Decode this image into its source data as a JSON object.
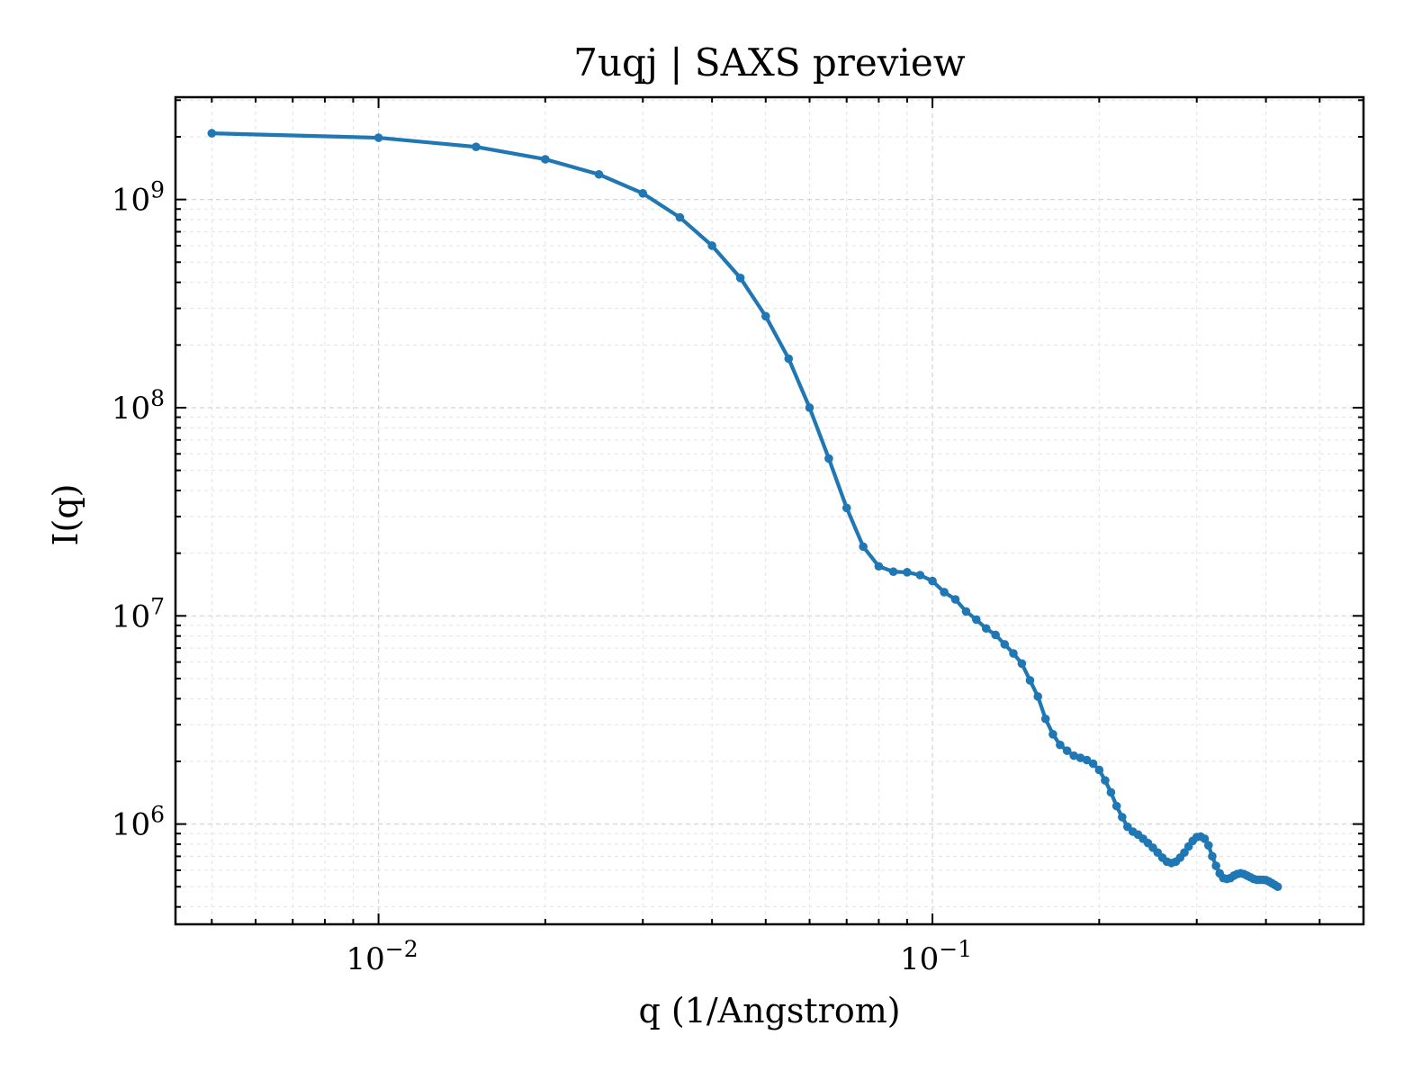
{
  "chart_data": {
    "type": "line",
    "title": "7uqj | SAXS preview",
    "xlabel": "q (1/Angstrom)",
    "ylabel": "I(q)",
    "xscale": "log",
    "yscale": "log",
    "xlim": [
      0.0043,
      0.6
    ],
    "ylim": [
      330000,
      3100000000
    ],
    "grid": true,
    "legend": "none",
    "x_ticks": [
      {
        "value": 0.01,
        "base": "10",
        "exp": "−2"
      },
      {
        "value": 0.1,
        "base": "10",
        "exp": "−1"
      }
    ],
    "y_ticks": [
      {
        "value": 1000000,
        "base": "10",
        "exp": "6"
      },
      {
        "value": 10000000,
        "base": "10",
        "exp": "7"
      },
      {
        "value": 100000000,
        "base": "10",
        "exp": "8"
      },
      {
        "value": 1000000000,
        "base": "10",
        "exp": "9"
      }
    ],
    "series": [
      {
        "color": "#1f77b4",
        "marker": "circle",
        "points": [
          [
            0.005,
            2080000000.0
          ],
          [
            0.01,
            1980000000.0
          ],
          [
            0.015,
            1790000000.0
          ],
          [
            0.02,
            1560000000.0
          ],
          [
            0.025,
            1320000000.0
          ],
          [
            0.03,
            1070000000.0
          ],
          [
            0.035,
            820000000.0
          ],
          [
            0.04,
            600000000.0
          ],
          [
            0.045,
            420000000.0
          ],
          [
            0.05,
            275000000.0
          ],
          [
            0.055,
            172000000.0
          ],
          [
            0.06,
            100000000.0
          ],
          [
            0.065,
            57000000.0
          ],
          [
            0.07,
            33000000.0
          ],
          [
            0.075,
            21500000.0
          ],
          [
            0.08,
            17300000.0
          ],
          [
            0.085,
            16300000.0
          ],
          [
            0.09,
            16200000.0
          ],
          [
            0.095,
            15700000.0
          ],
          [
            0.1,
            14700000.0
          ],
          [
            0.105,
            13000000.0
          ],
          [
            0.11,
            12000000.0
          ],
          [
            0.115,
            10500000.0
          ],
          [
            0.12,
            9600000.0
          ],
          [
            0.125,
            8700000.0
          ],
          [
            0.13,
            8100000.0
          ],
          [
            0.135,
            7300000.0
          ],
          [
            0.14,
            6600000.0
          ],
          [
            0.145,
            5900000.0
          ],
          [
            0.15,
            4900000.0
          ],
          [
            0.155,
            4100000.0
          ],
          [
            0.16,
            3200000.0
          ],
          [
            0.165,
            2700000.0
          ],
          [
            0.17,
            2400000.0
          ],
          [
            0.175,
            2250000.0
          ],
          [
            0.18,
            2130000.0
          ],
          [
            0.185,
            2080000.0
          ],
          [
            0.19,
            2030000.0
          ],
          [
            0.195,
            1950000.0
          ],
          [
            0.2,
            1820000.0
          ],
          [
            0.205,
            1620000.0
          ],
          [
            0.21,
            1420000.0
          ],
          [
            0.215,
            1220000.0
          ],
          [
            0.22,
            1080000.0
          ],
          [
            0.225,
            970000.0
          ],
          [
            0.23,
            920000.0
          ],
          [
            0.235,
            890000.0
          ],
          [
            0.24,
            850000.0
          ],
          [
            0.245,
            810000.0
          ],
          [
            0.25,
            770000.0
          ],
          [
            0.255,
            730000.0
          ],
          [
            0.26,
            690000.0
          ],
          [
            0.265,
            660000.0
          ],
          [
            0.27,
            650000.0
          ],
          [
            0.275,
            660000.0
          ],
          [
            0.28,
            690000.0
          ],
          [
            0.285,
            730000.0
          ],
          [
            0.29,
            780000.0
          ],
          [
            0.295,
            830000.0
          ],
          [
            0.3,
            865000.0
          ],
          [
            0.305,
            870000.0
          ],
          [
            0.31,
            850000.0
          ],
          [
            0.315,
            790000.0
          ],
          [
            0.32,
            700000.0
          ],
          [
            0.325,
            630000.0
          ],
          [
            0.33,
            580000.0
          ],
          [
            0.335,
            550000.0
          ],
          [
            0.34,
            545000.0
          ],
          [
            0.345,
            550000.0
          ],
          [
            0.35,
            565000.0
          ],
          [
            0.355,
            575000.0
          ],
          [
            0.36,
            580000.0
          ],
          [
            0.365,
            575000.0
          ],
          [
            0.37,
            565000.0
          ],
          [
            0.375,
            555000.0
          ],
          [
            0.38,
            545000.0
          ],
          [
            0.385,
            540000.0
          ],
          [
            0.39,
            540000.0
          ],
          [
            0.395,
            540000.0
          ],
          [
            0.4,
            538000.0
          ],
          [
            0.405,
            530000.0
          ],
          [
            0.41,
            520000.0
          ],
          [
            0.415,
            510000.0
          ],
          [
            0.42,
            500000.0
          ]
        ]
      }
    ]
  }
}
